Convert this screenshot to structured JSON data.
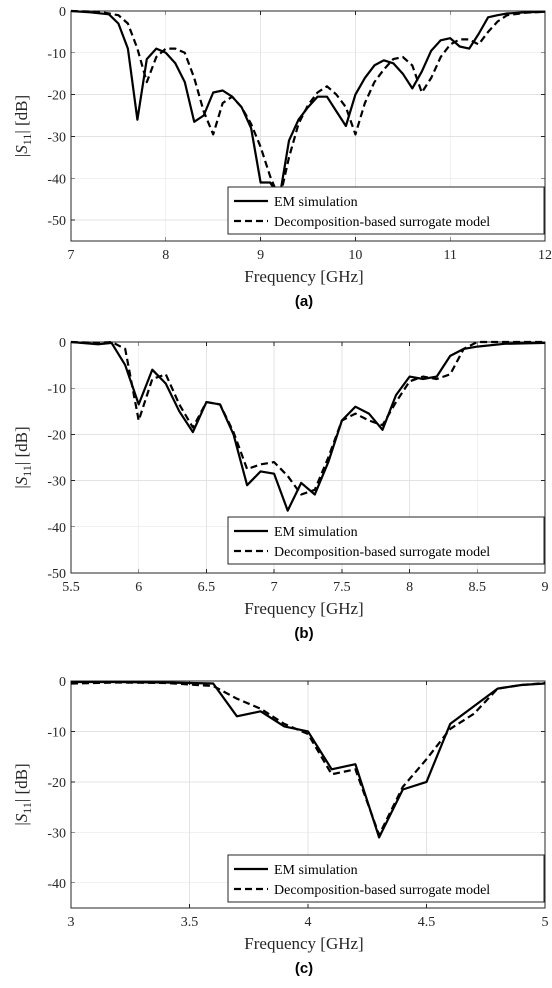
{
  "chart_data": [
    {
      "type": "line",
      "panel_label": "(a)",
      "xlabel": "Frequency [GHz]",
      "ylabel": "|S11| [dB]",
      "xlim": [
        7,
        12
      ],
      "ylim": [
        -55,
        0
      ],
      "xticks": [
        7,
        8,
        9,
        10,
        11,
        12
      ],
      "yticks": [
        0,
        -10,
        -20,
        -30,
        -40,
        -50
      ],
      "grid": true,
      "legend_position": "bottom-right",
      "series": [
        {
          "name": "EM simulation",
          "style": "solid",
          "x": [
            7.0,
            7.2,
            7.4,
            7.5,
            7.6,
            7.7,
            7.8,
            7.9,
            8.0,
            8.1,
            8.2,
            8.3,
            8.4,
            8.5,
            8.6,
            8.7,
            8.8,
            8.9,
            9.0,
            9.1,
            9.2,
            9.3,
            9.4,
            9.5,
            9.6,
            9.7,
            9.8,
            9.9,
            10.0,
            10.1,
            10.2,
            10.3,
            10.4,
            10.5,
            10.6,
            10.7,
            10.8,
            10.9,
            11.0,
            11.1,
            11.2,
            11.3,
            11.4,
            11.5,
            11.6,
            11.8,
            12.0
          ],
          "y": [
            0,
            -0.3,
            -0.8,
            -3,
            -9,
            -26,
            -11.5,
            -9,
            -10,
            -12.5,
            -17,
            -26.5,
            -25,
            -19.5,
            -19,
            -20.5,
            -23,
            -28,
            -41,
            -41,
            -44.5,
            -31,
            -26,
            -23,
            -20.5,
            -20.5,
            -24,
            -27.5,
            -20,
            -16,
            -13,
            -11.8,
            -12.5,
            -15,
            -18.5,
            -14.5,
            -9.5,
            -7,
            -6.5,
            -8.5,
            -9,
            -5.5,
            -1.5,
            -1,
            -0.6,
            -0.3,
            -0.2
          ]
        },
        {
          "name": "Decomposition-based surrogate model",
          "style": "dashed",
          "x": [
            7.0,
            7.3,
            7.5,
            7.6,
            7.7,
            7.8,
            7.9,
            8.0,
            8.1,
            8.2,
            8.3,
            8.4,
            8.5,
            8.6,
            8.7,
            8.8,
            8.9,
            9.0,
            9.1,
            9.2,
            9.3,
            9.4,
            9.5,
            9.6,
            9.7,
            9.8,
            9.9,
            10.0,
            10.1,
            10.2,
            10.3,
            10.4,
            10.5,
            10.6,
            10.7,
            10.8,
            10.9,
            11.0,
            11.1,
            11.2,
            11.3,
            11.4,
            11.5,
            11.6,
            11.8,
            12.0
          ],
          "y": [
            0,
            -0.2,
            -1,
            -3,
            -9,
            -17,
            -11,
            -9,
            -9,
            -10,
            -16,
            -24,
            -29.5,
            -22,
            -20.5,
            -23,
            -27,
            -32.5,
            -39.5,
            -45,
            -35,
            -27,
            -22.5,
            -19.5,
            -18,
            -20,
            -23,
            -29.5,
            -22,
            -17,
            -14,
            -11.5,
            -11,
            -13,
            -19.5,
            -16,
            -11,
            -8,
            -6.8,
            -6.8,
            -8,
            -5,
            -2.5,
            -1,
            -0.4,
            -0.2
          ]
        }
      ]
    },
    {
      "type": "line",
      "panel_label": "(b)",
      "xlabel": "Frequency [GHz]",
      "ylabel": "|S11| [dB]",
      "xlim": [
        5.5,
        9
      ],
      "ylim": [
        -50,
        0
      ],
      "xticks": [
        5.5,
        6,
        6.5,
        7,
        7.5,
        8,
        8.5,
        9
      ],
      "yticks": [
        0,
        -10,
        -20,
        -30,
        -40,
        -50
      ],
      "grid": true,
      "legend_position": "bottom-right",
      "series": [
        {
          "name": "EM simulation",
          "style": "solid",
          "x": [
            5.5,
            5.7,
            5.8,
            5.9,
            6.0,
            6.1,
            6.2,
            6.3,
            6.4,
            6.5,
            6.6,
            6.7,
            6.8,
            6.9,
            7.0,
            7.1,
            7.2,
            7.3,
            7.4,
            7.5,
            7.6,
            7.7,
            7.8,
            7.9,
            8.0,
            8.1,
            8.2,
            8.3,
            8.4,
            8.5,
            8.7,
            9.0
          ],
          "y": [
            0,
            -0.5,
            -0.2,
            -5,
            -13.5,
            -6,
            -9,
            -15,
            -19.5,
            -13,
            -13.5,
            -20,
            -31,
            -28,
            -28.5,
            -36.5,
            -30.5,
            -33,
            -26,
            -17,
            -14,
            -15.5,
            -19,
            -11.5,
            -7.5,
            -8,
            -7.5,
            -3,
            -1.5,
            -1,
            -0.4,
            -0.2
          ]
        },
        {
          "name": "Decomposition-based surrogate model",
          "style": "dashed",
          "x": [
            5.5,
            5.7,
            5.8,
            5.9,
            6.0,
            6.1,
            6.2,
            6.3,
            6.4,
            6.5,
            6.6,
            6.7,
            6.8,
            6.9,
            7.0,
            7.1,
            7.2,
            7.3,
            7.4,
            7.5,
            7.6,
            7.7,
            7.8,
            7.9,
            8.0,
            8.1,
            8.2,
            8.3,
            8.4,
            8.5,
            8.7,
            9.0
          ],
          "y": [
            0,
            -0.2,
            0,
            -1.5,
            -17,
            -8,
            -7,
            -13.5,
            -18.5,
            -13,
            -13.5,
            -19.5,
            -27.5,
            -26.5,
            -26,
            -29,
            -33,
            -32,
            -25,
            -17,
            -15.5,
            -17,
            -18,
            -13,
            -8.5,
            -7.5,
            -8,
            -7,
            -1.5,
            0,
            0,
            0
          ]
        }
      ]
    },
    {
      "type": "line",
      "panel_label": "(c)",
      "xlabel": "Frequency [GHz]",
      "ylabel": "|S11| [dB]",
      "xlim": [
        3,
        5
      ],
      "ylim": [
        -45,
        0
      ],
      "xticks": [
        3,
        3.5,
        4,
        4.5,
        5
      ],
      "yticks": [
        0,
        -10,
        -20,
        -30,
        -40
      ],
      "grid": true,
      "legend_position": "bottom-right",
      "series": [
        {
          "name": "EM simulation",
          "style": "solid",
          "x": [
            3.0,
            3.2,
            3.4,
            3.6,
            3.7,
            3.8,
            3.9,
            4.0,
            4.1,
            4.2,
            4.3,
            4.4,
            4.5,
            4.6,
            4.7,
            4.8,
            4.9,
            5.0
          ],
          "y": [
            -0.2,
            -0.2,
            -0.3,
            -0.5,
            -7,
            -6,
            -9,
            -10,
            -17.5,
            -16.5,
            -31,
            -21.5,
            -20,
            -8.5,
            -5,
            -1.5,
            -0.8,
            -0.5
          ]
        },
        {
          "name": "Decomposition-based surrogate model",
          "style": "dashed",
          "x": [
            3.0,
            3.2,
            3.4,
            3.6,
            3.7,
            3.8,
            3.9,
            4.0,
            4.1,
            4.2,
            4.3,
            4.4,
            4.5,
            4.6,
            4.7,
            4.8,
            4.9,
            5.0
          ],
          "y": [
            -0.5,
            -0.3,
            -0.4,
            -1,
            -3.5,
            -5.5,
            -8.5,
            -10.5,
            -18.5,
            -17.5,
            -30.5,
            -21,
            -15.5,
            -9.5,
            -6.5,
            -1.5,
            -0.8,
            -0.4
          ]
        }
      ]
    }
  ]
}
